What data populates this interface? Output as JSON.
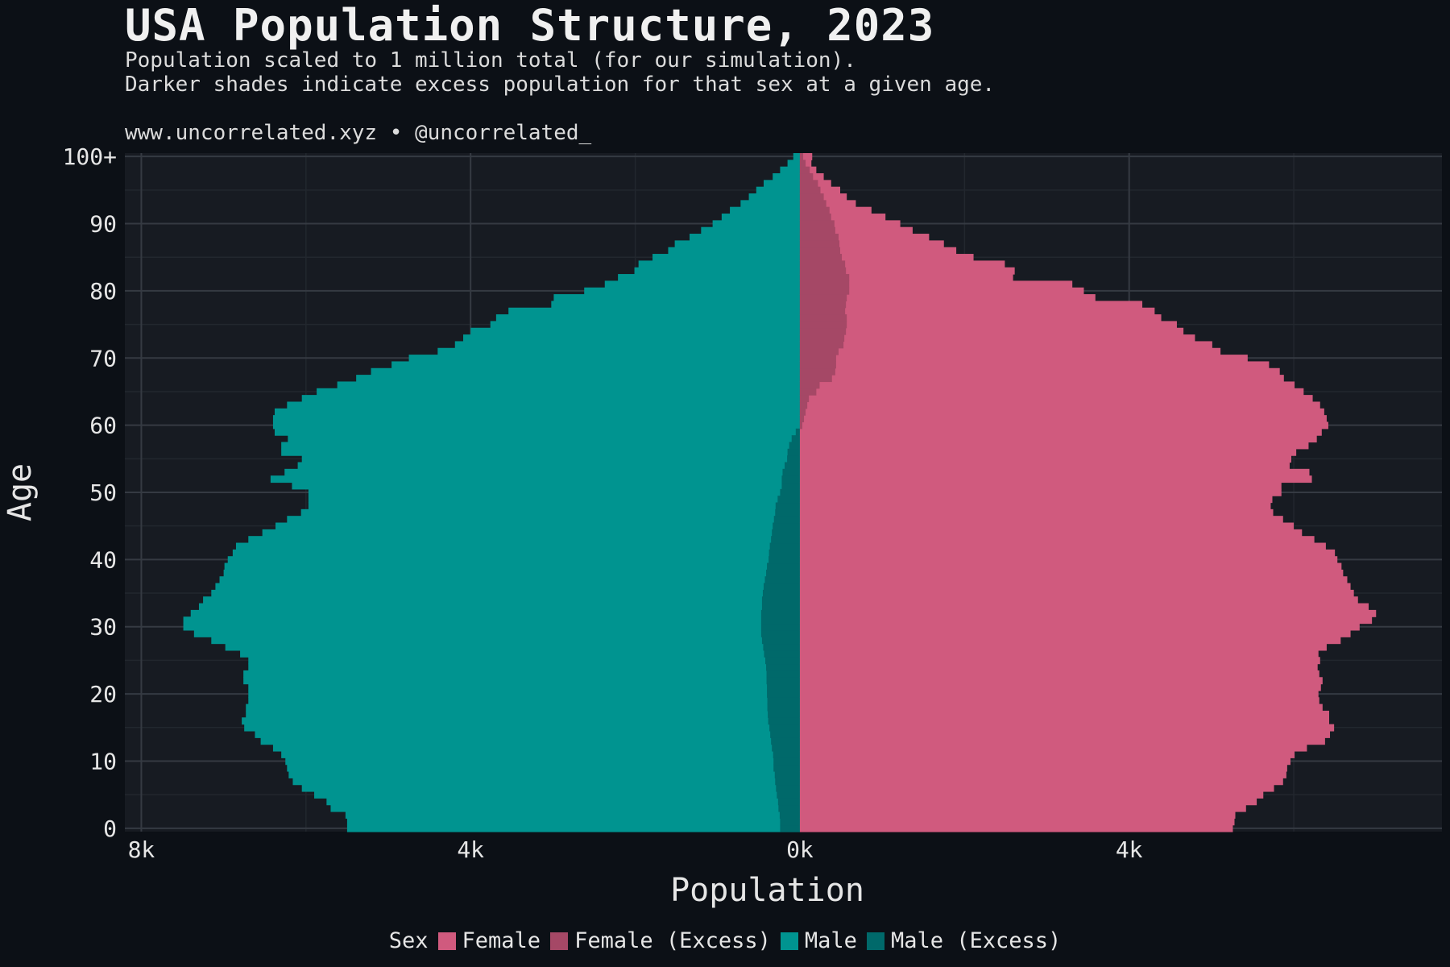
{
  "header": {
    "title": "USA Population Structure, 2023",
    "subtitle_line1": "Population scaled to 1 million total (for our simulation).",
    "subtitle_line2": "Darker shades indicate excess population for that sex at a given age.",
    "credit": "www.uncorrelated.xyz • @uncorrelated_"
  },
  "colors": {
    "background": "#0c1016",
    "panel": "#171b22",
    "grid_major": "#353a42",
    "grid_minor": "#22272e",
    "female": "#d05a7e",
    "female_excess": "#a54866",
    "male": "#009490",
    "male_excess": "#00696a"
  },
  "legend": {
    "title": "Sex",
    "items": [
      {
        "label": "Female",
        "color": "#d05a7e"
      },
      {
        "label": "Female (Excess)",
        "color": "#a54866"
      },
      {
        "label": "Male",
        "color": "#009490"
      },
      {
        "label": "Male (Excess)",
        "color": "#00696a"
      }
    ]
  },
  "chart_data": {
    "type": "bar",
    "orientation": "horizontal",
    "xlabel": "Population",
    "ylabel": "Age",
    "xlim": [
      -8200,
      7800
    ],
    "ylim": [
      -0.5,
      100.5
    ],
    "x_ticks": [
      {
        "value": -8000,
        "label": "8k"
      },
      {
        "value": -4000,
        "label": "4k"
      },
      {
        "value": 0,
        "label": "0k"
      },
      {
        "value": 4000,
        "label": "4k"
      }
    ],
    "y_ticks": [
      {
        "value": 0,
        "label": "0"
      },
      {
        "value": 10,
        "label": "10"
      },
      {
        "value": 20,
        "label": "20"
      },
      {
        "value": 30,
        "label": "30"
      },
      {
        "value": 40,
        "label": "40"
      },
      {
        "value": 50,
        "label": "50"
      },
      {
        "value": 60,
        "label": "60"
      },
      {
        "value": 70,
        "label": "70"
      },
      {
        "value": 80,
        "label": "80"
      },
      {
        "value": 90,
        "label": "90"
      },
      {
        "value": 100,
        "label": "100+"
      }
    ],
    "grid": true,
    "legend_position": "bottom",
    "series": [
      {
        "name": "Male",
        "ages": [
          0,
          1,
          2,
          3,
          4,
          5,
          6,
          7,
          8,
          9,
          10,
          11,
          12,
          13,
          14,
          15,
          16,
          17,
          18,
          19,
          20,
          21,
          22,
          23,
          24,
          25,
          26,
          27,
          28,
          29,
          30,
          31,
          32,
          33,
          34,
          35,
          36,
          37,
          38,
          39,
          40,
          41,
          42,
          43,
          44,
          45,
          46,
          47,
          48,
          49,
          50,
          51,
          52,
          53,
          54,
          55,
          56,
          57,
          58,
          59,
          60,
          61,
          62,
          63,
          64,
          65,
          66,
          67,
          68,
          69,
          70,
          71,
          72,
          73,
          74,
          75,
          76,
          77,
          78,
          79,
          80,
          81,
          82,
          83,
          84,
          85,
          86,
          87,
          88,
          89,
          90,
          91,
          92,
          93,
          94,
          95,
          96,
          97,
          98,
          99,
          100
        ],
        "values": [
          5500,
          5500,
          5520,
          5700,
          5750,
          5900,
          6050,
          6160,
          6210,
          6230,
          6250,
          6300,
          6400,
          6550,
          6620,
          6750,
          6780,
          6730,
          6730,
          6700,
          6700,
          6700,
          6760,
          6760,
          6700,
          6700,
          6800,
          6980,
          7150,
          7360,
          7490,
          7490,
          7400,
          7300,
          7250,
          7150,
          7100,
          7050,
          7000,
          6990,
          6950,
          6890,
          6850,
          6700,
          6530,
          6370,
          6230,
          6060,
          5970,
          5970,
          5970,
          6170,
          6430,
          6260,
          6100,
          6050,
          6300,
          6300,
          6220,
          6380,
          6400,
          6400,
          6380,
          6230,
          6050,
          5870,
          5620,
          5390,
          5210,
          4960,
          4750,
          4400,
          4190,
          4090,
          4000,
          3760,
          3690,
          3540,
          3020,
          2990,
          2620,
          2370,
          2210,
          2010,
          1960,
          1790,
          1600,
          1520,
          1340,
          1200,
          1060,
          950,
          850,
          720,
          620,
          530,
          440,
          330,
          240,
          150,
          80
        ]
      },
      {
        "name": "Male (Excess)",
        "ages": [
          0,
          1,
          2,
          3,
          4,
          5,
          6,
          7,
          8,
          9,
          10,
          11,
          12,
          13,
          14,
          15,
          16,
          17,
          18,
          19,
          20,
          21,
          22,
          23,
          24,
          25,
          26,
          27,
          28,
          29,
          30,
          31,
          32,
          33,
          34,
          35,
          36,
          37,
          38,
          39,
          40,
          41,
          42,
          43,
          44,
          45,
          46,
          47,
          48,
          49,
          50,
          51,
          52,
          53,
          54,
          55,
          56,
          57,
          58,
          59,
          60,
          61,
          62,
          63,
          64,
          65,
          66,
          67,
          68,
          69,
          70,
          71,
          72,
          73,
          74,
          75,
          76,
          77,
          78,
          79,
          80,
          81,
          82,
          83,
          84,
          85,
          86,
          87,
          88,
          89,
          90,
          91,
          92,
          93,
          94,
          95,
          96,
          97,
          98,
          99,
          100
        ],
        "values": [
          240,
          240,
          245,
          260,
          265,
          280,
          290,
          300,
          305,
          320,
          320,
          325,
          340,
          350,
          360,
          370,
          385,
          390,
          395,
          395,
          400,
          400,
          405,
          405,
          410,
          420,
          435,
          445,
          460,
          470,
          470,
          470,
          470,
          460,
          460,
          450,
          440,
          425,
          410,
          400,
          380,
          375,
          365,
          350,
          340,
          330,
          315,
          300,
          295,
          270,
          240,
          220,
          220,
          210,
          185,
          155,
          150,
          130,
          100,
          50,
          0,
          0,
          0,
          0,
          0,
          0,
          0,
          0,
          0,
          0,
          0,
          0,
          0,
          0,
          0,
          0,
          0,
          0,
          0,
          0,
          0,
          0,
          0,
          0,
          0,
          0,
          0,
          0,
          0,
          0,
          0,
          0,
          0,
          0,
          0,
          0,
          0,
          0,
          0,
          0,
          0
        ]
      },
      {
        "name": "Female",
        "ages": [
          0,
          1,
          2,
          3,
          4,
          5,
          6,
          7,
          8,
          9,
          10,
          11,
          12,
          13,
          14,
          15,
          16,
          17,
          18,
          19,
          20,
          21,
          22,
          23,
          24,
          25,
          26,
          27,
          28,
          29,
          30,
          31,
          32,
          33,
          34,
          35,
          36,
          37,
          38,
          39,
          40,
          41,
          42,
          43,
          44,
          45,
          46,
          47,
          48,
          49,
          50,
          51,
          52,
          53,
          54,
          55,
          56,
          57,
          58,
          59,
          60,
          61,
          62,
          63,
          64,
          65,
          66,
          67,
          68,
          69,
          70,
          71,
          72,
          73,
          74,
          75,
          76,
          77,
          78,
          79,
          80,
          81,
          82,
          83,
          84,
          85,
          86,
          87,
          88,
          89,
          90,
          91,
          92,
          93,
          94,
          95,
          96,
          97,
          98,
          99,
          100
        ],
        "values": [
          5260,
          5280,
          5290,
          5420,
          5550,
          5630,
          5760,
          5870,
          5910,
          5920,
          5960,
          6010,
          6160,
          6380,
          6440,
          6490,
          6430,
          6430,
          6350,
          6310,
          6300,
          6330,
          6350,
          6310,
          6290,
          6320,
          6300,
          6400,
          6570,
          6690,
          6800,
          6950,
          7000,
          6910,
          6780,
          6730,
          6690,
          6650,
          6600,
          6580,
          6530,
          6500,
          6390,
          6250,
          6100,
          6000,
          5870,
          5750,
          5720,
          5740,
          5850,
          5850,
          6220,
          6190,
          5950,
          5970,
          6030,
          6180,
          6280,
          6340,
          6420,
          6400,
          6370,
          6320,
          6230,
          6120,
          6010,
          5880,
          5830,
          5700,
          5440,
          5110,
          5010,
          4800,
          4660,
          4580,
          4390,
          4310,
          4160,
          3590,
          3450,
          3310,
          2590,
          2610,
          2490,
          2110,
          1900,
          1750,
          1570,
          1370,
          1220,
          1040,
          870,
          680,
          570,
          490,
          380,
          290,
          200,
          140,
          150
        ]
      },
      {
        "name": "Female (Excess)",
        "ages": [
          0,
          1,
          2,
          3,
          4,
          5,
          6,
          7,
          8,
          9,
          10,
          11,
          12,
          13,
          14,
          15,
          16,
          17,
          18,
          19,
          20,
          21,
          22,
          23,
          24,
          25,
          26,
          27,
          28,
          29,
          30,
          31,
          32,
          33,
          34,
          35,
          36,
          37,
          38,
          39,
          40,
          41,
          42,
          43,
          44,
          45,
          46,
          47,
          48,
          49,
          50,
          51,
          52,
          53,
          54,
          55,
          56,
          57,
          58,
          59,
          60,
          61,
          62,
          63,
          64,
          65,
          66,
          67,
          68,
          69,
          70,
          71,
          72,
          73,
          74,
          75,
          76,
          77,
          78,
          79,
          80,
          81,
          82,
          83,
          84,
          85,
          86,
          87,
          88,
          89,
          90,
          91,
          92,
          93,
          94,
          95,
          96,
          97,
          98,
          99,
          100
        ],
        "values": [
          0,
          0,
          0,
          0,
          0,
          0,
          0,
          0,
          0,
          0,
          0,
          0,
          0,
          0,
          0,
          0,
          0,
          0,
          0,
          0,
          0,
          0,
          0,
          0,
          0,
          0,
          0,
          0,
          0,
          0,
          0,
          0,
          0,
          0,
          0,
          0,
          0,
          0,
          0,
          0,
          0,
          0,
          0,
          0,
          0,
          0,
          0,
          0,
          0,
          0,
          0,
          0,
          0,
          0,
          0,
          0,
          0,
          0,
          0,
          0,
          30,
          50,
          70,
          90,
          110,
          200,
          240,
          390,
          430,
          440,
          440,
          470,
          530,
          540,
          560,
          570,
          570,
          550,
          560,
          570,
          600,
          600,
          600,
          560,
          550,
          510,
          490,
          480,
          470,
          430,
          420,
          380,
          360,
          320,
          290,
          250,
          220,
          160,
          120,
          70,
          40
        ]
      }
    ]
  }
}
